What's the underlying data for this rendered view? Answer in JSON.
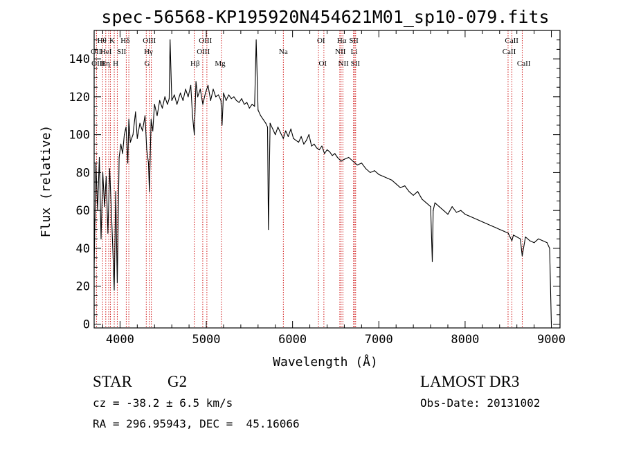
{
  "chart_data": {
    "type": "line",
    "title": "spec-56568-KP195920N454621M01_sp10-079.fits",
    "xlabel": "Wavelength (Å)",
    "ylabel": "Flux (relative)",
    "xlim": [
      3700,
      9100
    ],
    "ylim": [
      -2,
      155
    ],
    "x_ticks": [
      4000,
      5000,
      6000,
      7000,
      8000,
      9000
    ],
    "x_tick_labels": [
      "4000",
      "5000",
      "6000",
      "7000",
      "8000",
      "9000"
    ],
    "y_ticks": [
      0,
      20,
      40,
      60,
      80,
      100,
      120,
      140
    ],
    "y_tick_labels": [
      "0",
      "20",
      "40",
      "60",
      "80",
      "100",
      "120",
      "140"
    ],
    "series": [
      {
        "name": "flux",
        "x": [
          3700,
          3720,
          3740,
          3760,
          3780,
          3800,
          3820,
          3840,
          3860,
          3880,
          3900,
          3920,
          3933,
          3950,
          3968,
          3990,
          4010,
          4030,
          4050,
          4070,
          4090,
          4102,
          4120,
          4150,
          4180,
          4200,
          4230,
          4260,
          4290,
          4310,
          4330,
          4340,
          4360,
          4380,
          4400,
          4430,
          4460,
          4490,
          4520,
          4550,
          4570,
          4580,
          4600,
          4630,
          4660,
          4700,
          4730,
          4760,
          4790,
          4820,
          4840,
          4861,
          4880,
          4900,
          4930,
          4960,
          4990,
          5020,
          5050,
          5080,
          5110,
          5140,
          5170,
          5183,
          5200,
          5230,
          5260,
          5290,
          5320,
          5350,
          5380,
          5410,
          5440,
          5470,
          5500,
          5530,
          5560,
          5578,
          5600,
          5630,
          5660,
          5690,
          5710,
          5720,
          5740,
          5770,
          5800,
          5830,
          5860,
          5893,
          5920,
          5950,
          5980,
          6010,
          6040,
          6070,
          6100,
          6130,
          6160,
          6190,
          6220,
          6250,
          6280,
          6310,
          6340,
          6370,
          6400,
          6430,
          6460,
          6490,
          6520,
          6563,
          6600,
          6650,
          6700,
          6750,
          6800,
          6850,
          6900,
          6950,
          7000,
          7050,
          7100,
          7150,
          7200,
          7250,
          7300,
          7350,
          7400,
          7450,
          7500,
          7550,
          7600,
          7620,
          7630,
          7650,
          7700,
          7750,
          7800,
          7850,
          7900,
          7950,
          8000,
          8050,
          8100,
          8150,
          8200,
          8250,
          8300,
          8350,
          8400,
          8450,
          8500,
          8542,
          8560,
          8600,
          8640,
          8662,
          8700,
          8750,
          8800,
          8850,
          8900,
          8950,
          8980,
          9000
        ],
        "y": [
          30,
          85,
          60,
          88,
          45,
          80,
          62,
          78,
          48,
          82,
          60,
          35,
          18,
          70,
          22,
          88,
          95,
          90,
          100,
          104,
          85,
          108,
          96,
          100,
          112,
          98,
          106,
          102,
          110,
          92,
          85,
          70,
          108,
          102,
          116,
          110,
          118,
          114,
          120,
          116,
          119,
          150,
          118,
          121,
          116,
          122,
          118,
          124,
          120,
          126,
          110,
          100,
          128,
          120,
          124,
          116,
          122,
          126,
          118,
          124,
          120,
          121,
          118,
          105,
          122,
          118,
          121,
          119,
          120,
          118,
          117,
          119,
          116,
          117,
          114,
          116,
          115,
          150,
          113,
          110,
          108,
          106,
          104,
          50,
          106,
          103,
          100,
          104,
          101,
          98,
          102,
          99,
          103,
          98,
          97,
          96,
          99,
          95,
          97,
          100,
          94,
          95,
          93,
          92,
          94,
          90,
          92,
          91,
          89,
          90,
          88,
          86,
          87,
          88,
          86,
          84,
          85,
          82,
          80,
          81,
          79,
          78,
          77,
          76,
          74,
          72,
          73,
          70,
          68,
          70,
          66,
          64,
          62,
          33,
          60,
          64,
          62,
          60,
          58,
          62,
          59,
          60,
          58,
          57,
          56,
          55,
          54,
          53,
          52,
          51,
          50,
          49,
          48,
          44,
          47,
          46,
          45,
          36,
          46,
          44,
          43,
          45,
          44,
          43,
          40,
          0
        ]
      }
    ],
    "spectral_lines": [
      {
        "label": "Hθ",
        "wavelength": 3798,
        "row": 1,
        "label_x": 3790
      },
      {
        "label": "OII",
        "wavelength": 3727,
        "row": 2,
        "label_x": 3722
      },
      {
        "label": "OIII",
        "wavelength": 3869,
        "row": 3,
        "label_x": 3745
      },
      {
        "label": "K",
        "wavelength": 3933,
        "row": 1,
        "label_x": 3908
      },
      {
        "label": "HeI",
        "wavelength": 3889,
        "row": 2,
        "label_x": 3838
      },
      {
        "label": "Hη",
        "wavelength": 3835,
        "row": 3,
        "label_x": 3830
      },
      {
        "label": "SII",
        "wavelength": 4072,
        "row": 2,
        "label_x": 4018
      },
      {
        "label": "H",
        "wavelength": 3968,
        "row": 3,
        "label_x": 3950
      },
      {
        "label": "Hδ",
        "wavelength": 4102,
        "row": 1,
        "label_x": 4060
      },
      {
        "label": "OIII",
        "wavelength": 4363,
        "row": 1,
        "label_x": 4340
      },
      {
        "label": "Hγ",
        "wavelength": 4340,
        "row": 2,
        "label_x": 4330
      },
      {
        "label": "G",
        "wavelength": 4304,
        "row": 3,
        "label_x": 4314
      },
      {
        "label": "OIII",
        "wavelength": 4959,
        "row": 1,
        "label_x": 4990
      },
      {
        "label": "OIII",
        "wavelength": 5007,
        "row": 2,
        "label_x": 4965
      },
      {
        "label": "Hβ",
        "wavelength": 4861,
        "row": 3,
        "label_x": 4870
      },
      {
        "label": "Mg",
        "wavelength": 5175,
        "row": 3,
        "label_x": 5160
      },
      {
        "label": "Na",
        "wavelength": 5893,
        "row": 2,
        "label_x": 5893
      },
      {
        "label": "OI",
        "wavelength": 6300,
        "row": 1,
        "label_x": 6330
      },
      {
        "label": "OI",
        "wavelength": 6363,
        "row": 3,
        "label_x": 6350
      },
      {
        "label": "Hα",
        "wavelength": 6563,
        "row": 1,
        "label_x": 6570
      },
      {
        "label": "NII",
        "wavelength": 6548,
        "row": 2,
        "label_x": 6555
      },
      {
        "label": "NII",
        "wavelength": 6583,
        "row": 3,
        "label_x": 6590
      },
      {
        "label": "SII",
        "wavelength": 6717,
        "row": 1,
        "label_x": 6710
      },
      {
        "label": "Li",
        "wavelength": 6707,
        "row": 2,
        "label_x": 6713
      },
      {
        "label": "SII",
        "wavelength": 6731,
        "row": 3,
        "label_x": 6728
      },
      {
        "label": "CaII",
        "wavelength": 8498,
        "row": 1,
        "label_x": 8540
      },
      {
        "label": "CaII",
        "wavelength": 8542,
        "row": 2,
        "label_x": 8510
      },
      {
        "label": "CaII",
        "wavelength": 8662,
        "row": 3,
        "label_x": 8680
      }
    ],
    "line_color": "#000000",
    "marker_color": "#cc0000"
  },
  "info": {
    "object_class": "STAR",
    "subclass": "G2",
    "redshift": "cz = -38.2 ± 6.5 km/s",
    "coords": "RA = 296.95943, DEC =  45.16066",
    "survey": "LAMOST DR3",
    "obs_date": "Obs-Date: 20131002"
  }
}
